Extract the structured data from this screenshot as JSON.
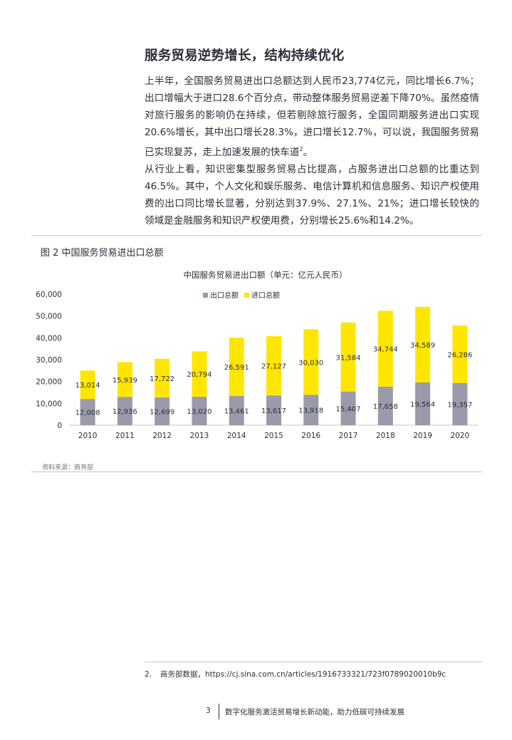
{
  "heading": "服务贸易逆势增长，结构持续优化",
  "paragraph1": {
    "text": "上半年，全国服务贸易进出口总额达到人民币23,774亿元，同比增长6.7%；出口增幅大于进口28.6个百分点，带动整体服务贸易逆差下降70%。虽然疫情对旅行服务的影响仍在持续，但若剔除旅行服务，全国同期服务进出口实现20.6%增长，其中出口增长28.3%，进口增长12.7%，可以说，我国服务贸易已实现复苏，走上加速发展的快车道",
    "footnote_ref": "2",
    "end": "。"
  },
  "paragraph2": "从行业上看，知识密集型服务贸易占比提高，占服务进出口总额的比重达到46.5%。其中，个人文化和娱乐服务、电信计算机和信息服务、知识产权使用费的出口同比增长显著，分别达到37.9%、27.1%、21%；进口增长较快的领域是金融服务和知识产权使用费，分别增长25.6%和14.2%。",
  "figure": {
    "label": "图 2  中国服务贸易进出口总额",
    "source": "资料来源：商务部"
  },
  "chart_data": {
    "type": "bar",
    "stacked": true,
    "title": "中国服务贸易进出口额（单元：亿元人民币）",
    "categories": [
      "2010",
      "2011",
      "2012",
      "2013",
      "2014",
      "2015",
      "2016",
      "2017",
      "2018",
      "2019",
      "2020"
    ],
    "series": [
      {
        "name": "出口总额",
        "color": "#9b9aab",
        "values": [
          12008,
          12936,
          12699,
          13020,
          13461,
          13617,
          13918,
          15407,
          17658,
          19564,
          19357
        ]
      },
      {
        "name": "进口总额",
        "color": "#ffe600",
        "values": [
          13014,
          15939,
          17722,
          20794,
          26591,
          27127,
          30030,
          31584,
          34744,
          34589,
          26286
        ]
      }
    ],
    "data_labels": {
      "出口总额": [
        "12,008",
        "12,936",
        "12,699",
        "13,020",
        "13,461",
        "13,617",
        "13,918",
        "15,407",
        "17,658",
        "19,564",
        "19,357"
      ],
      "进口总额": [
        "13,014",
        "15,939",
        "17,722",
        "20,794",
        "26,591",
        "27,127",
        "30,030",
        "31,584",
        "34,744",
        "34,589",
        "26,286"
      ]
    },
    "ylim": [
      0,
      60000
    ],
    "yticks": [
      0,
      10000,
      20000,
      30000,
      40000,
      50000,
      60000
    ],
    "ytick_labels": [
      "0",
      "10,000",
      "20,000",
      "30,000",
      "40,000",
      "50,000",
      "60,000"
    ],
    "legend_position": "top",
    "grid": false
  },
  "footnote": {
    "number": "2.",
    "text": "商务部数据，https://cj.sina.com.cn/articles/1916733321/723f0789020010b9c"
  },
  "footer": {
    "page_number": "3",
    "title": "数字化服务激活贸易增长新动能，助力低碳可持续发展"
  }
}
